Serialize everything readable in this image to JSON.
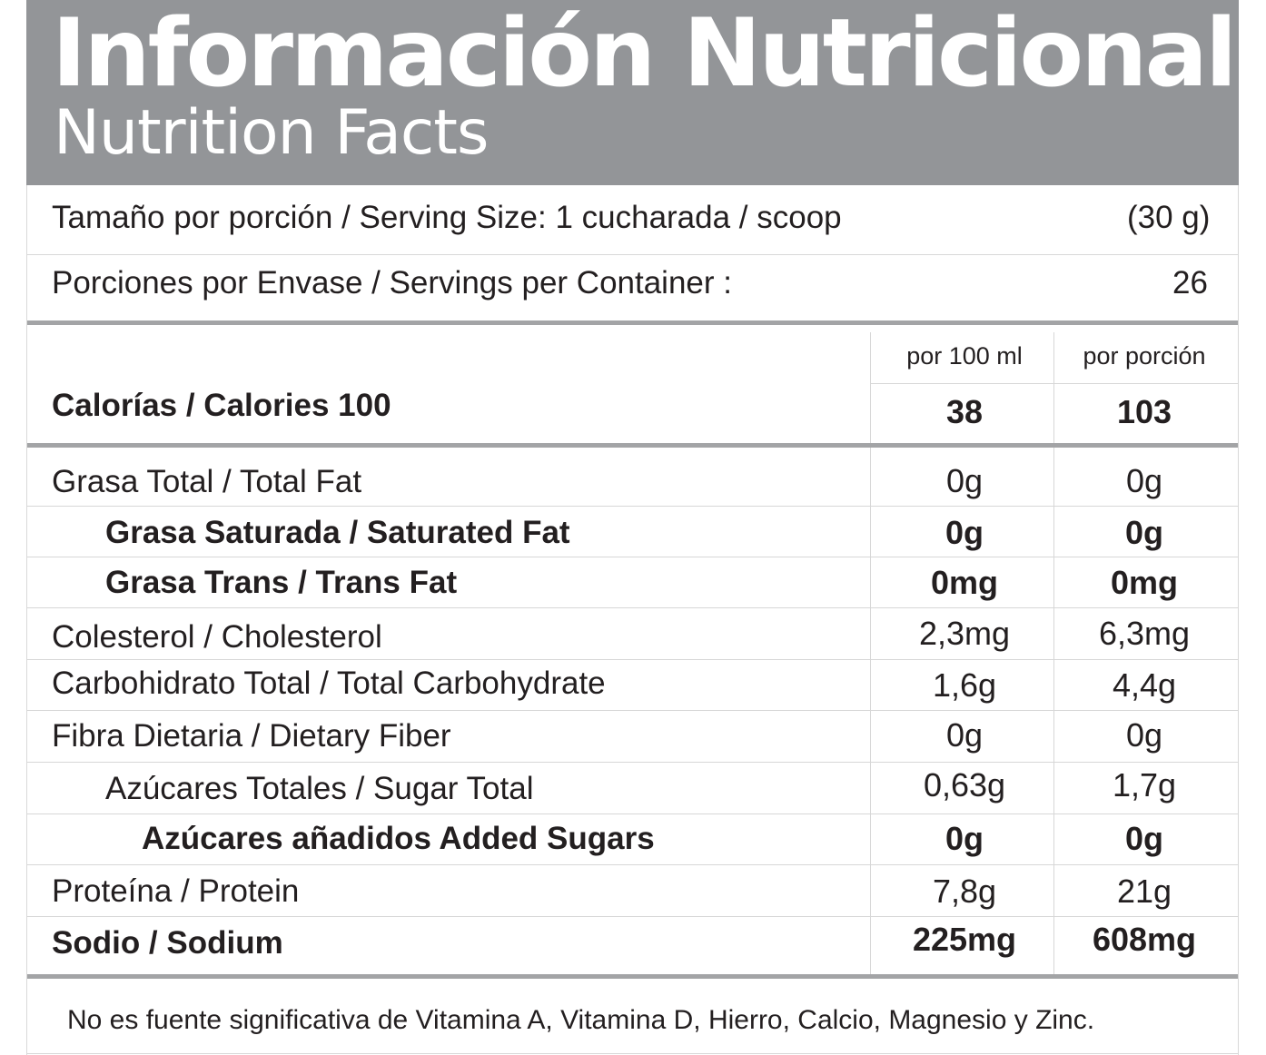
{
  "header": {
    "title_es": "Información Nutricional",
    "title_en": "Nutrition Facts"
  },
  "serving": {
    "size_label": "Tamaño por porción / Serving Size: 1 cucharada / scoop",
    "size_value": "(30 g)",
    "per_container_label": "Porciones por Envase / Servings per Container :",
    "per_container_value": "26"
  },
  "columns": {
    "col1": "por 100 ml",
    "col2": "por porción"
  },
  "calories": {
    "label": "Calorías / Calories 100",
    "col1": "38",
    "col2": "103"
  },
  "nutrients": [
    {
      "label": "Grasa Total / Total Fat",
      "col1": "0g",
      "col2": "0g"
    },
    {
      "label": "Grasa Saturada / Saturated Fat",
      "col1": "0g",
      "col2": "0g"
    },
    {
      "label": "Grasa Trans / Trans Fat",
      "col1": "0mg",
      "col2": "0mg"
    },
    {
      "label": "Colesterol / Cholesterol",
      "col1": "2,3mg",
      "col2": "6,3mg"
    },
    {
      "label": "Carbohidrato Total / Total Carbohydrate",
      "col1": "1,6g",
      "col2": "4,4g"
    },
    {
      "label": "Fibra Dietaria / Dietary Fiber",
      "col1": "0g",
      "col2": "0g"
    },
    {
      "label": "Azúcares Totales / Sugar Total",
      "col1": "0,63g",
      "col2": "1,7g"
    },
    {
      "label": "Azúcares añadidos Added Sugars",
      "col1": "0g",
      "col2": "0g"
    },
    {
      "label": "Proteína / Protein",
      "col1": "7,8g",
      "col2": "21g"
    },
    {
      "label": "Sodio / Sodium",
      "col1": "225mg",
      "col2": "608mg"
    }
  ],
  "footer": {
    "note": "No es fuente significativa de Vitamina A, Vitamina D, Hierro, Calcio, Magnesio y Zinc."
  },
  "colors": {
    "header_bg": "#939598",
    "text": "#231f20",
    "rule_thick": "#a3a4a6",
    "rule_thin": "#d7d7d7"
  }
}
